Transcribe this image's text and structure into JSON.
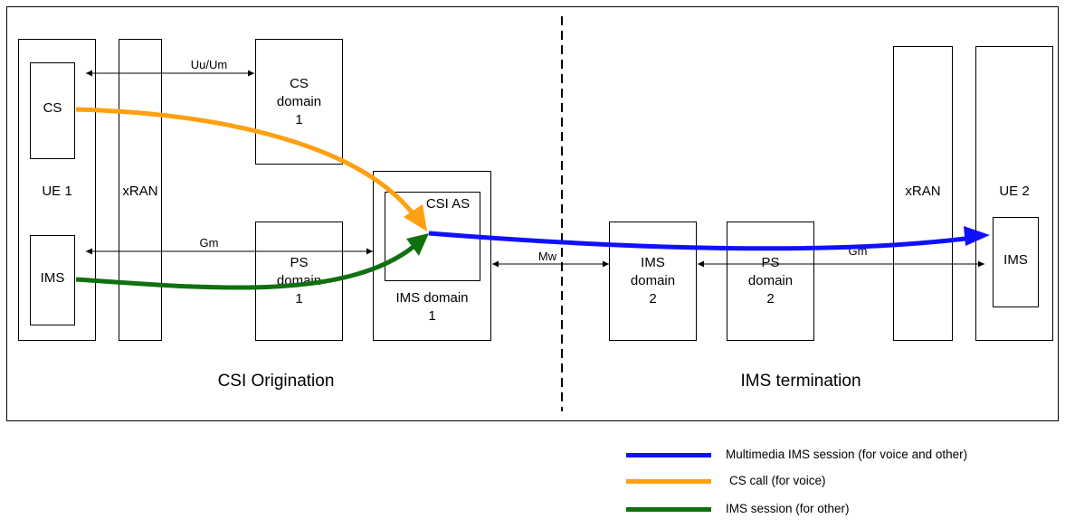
{
  "diagram": {
    "ue1": {
      "label": "UE 1",
      "cs_label": "CS",
      "ims_label": "IMS"
    },
    "xran1": {
      "label": "xRAN"
    },
    "cs_domain1": {
      "label": "CS\ndomain\n1"
    },
    "ps_domain1": {
      "label": "PS\ndomain\n1"
    },
    "ims_domain1": {
      "label": "IMS domain\n1",
      "csi_as_label": "CSI AS"
    },
    "ims_domain2": {
      "label": "IMS\ndomain\n2"
    },
    "ps_domain2": {
      "label": "PS\ndomain\n2"
    },
    "xran2": {
      "label": "xRAN"
    },
    "ue2": {
      "label": "UE 2",
      "ims_label": "IMS"
    },
    "interfaces": {
      "uu_um": "Uu/Um",
      "gm_left": "Gm",
      "mw": "Mw",
      "gm_right": "Gm"
    },
    "sections": {
      "left": "CSI Origination",
      "right": "IMS termination"
    }
  },
  "legend": [
    {
      "label": "Multimedia IMS session (for voice and other)",
      "color": "#1010ff"
    },
    {
      "label": "CS call (for voice)",
      "color": "#ffa010"
    },
    {
      "label": "IMS session (for other)",
      "color": "#107010"
    }
  ],
  "colors": {
    "ims_session": "#1010ff",
    "cs_call": "#ffa010",
    "ims_other": "#107010"
  }
}
